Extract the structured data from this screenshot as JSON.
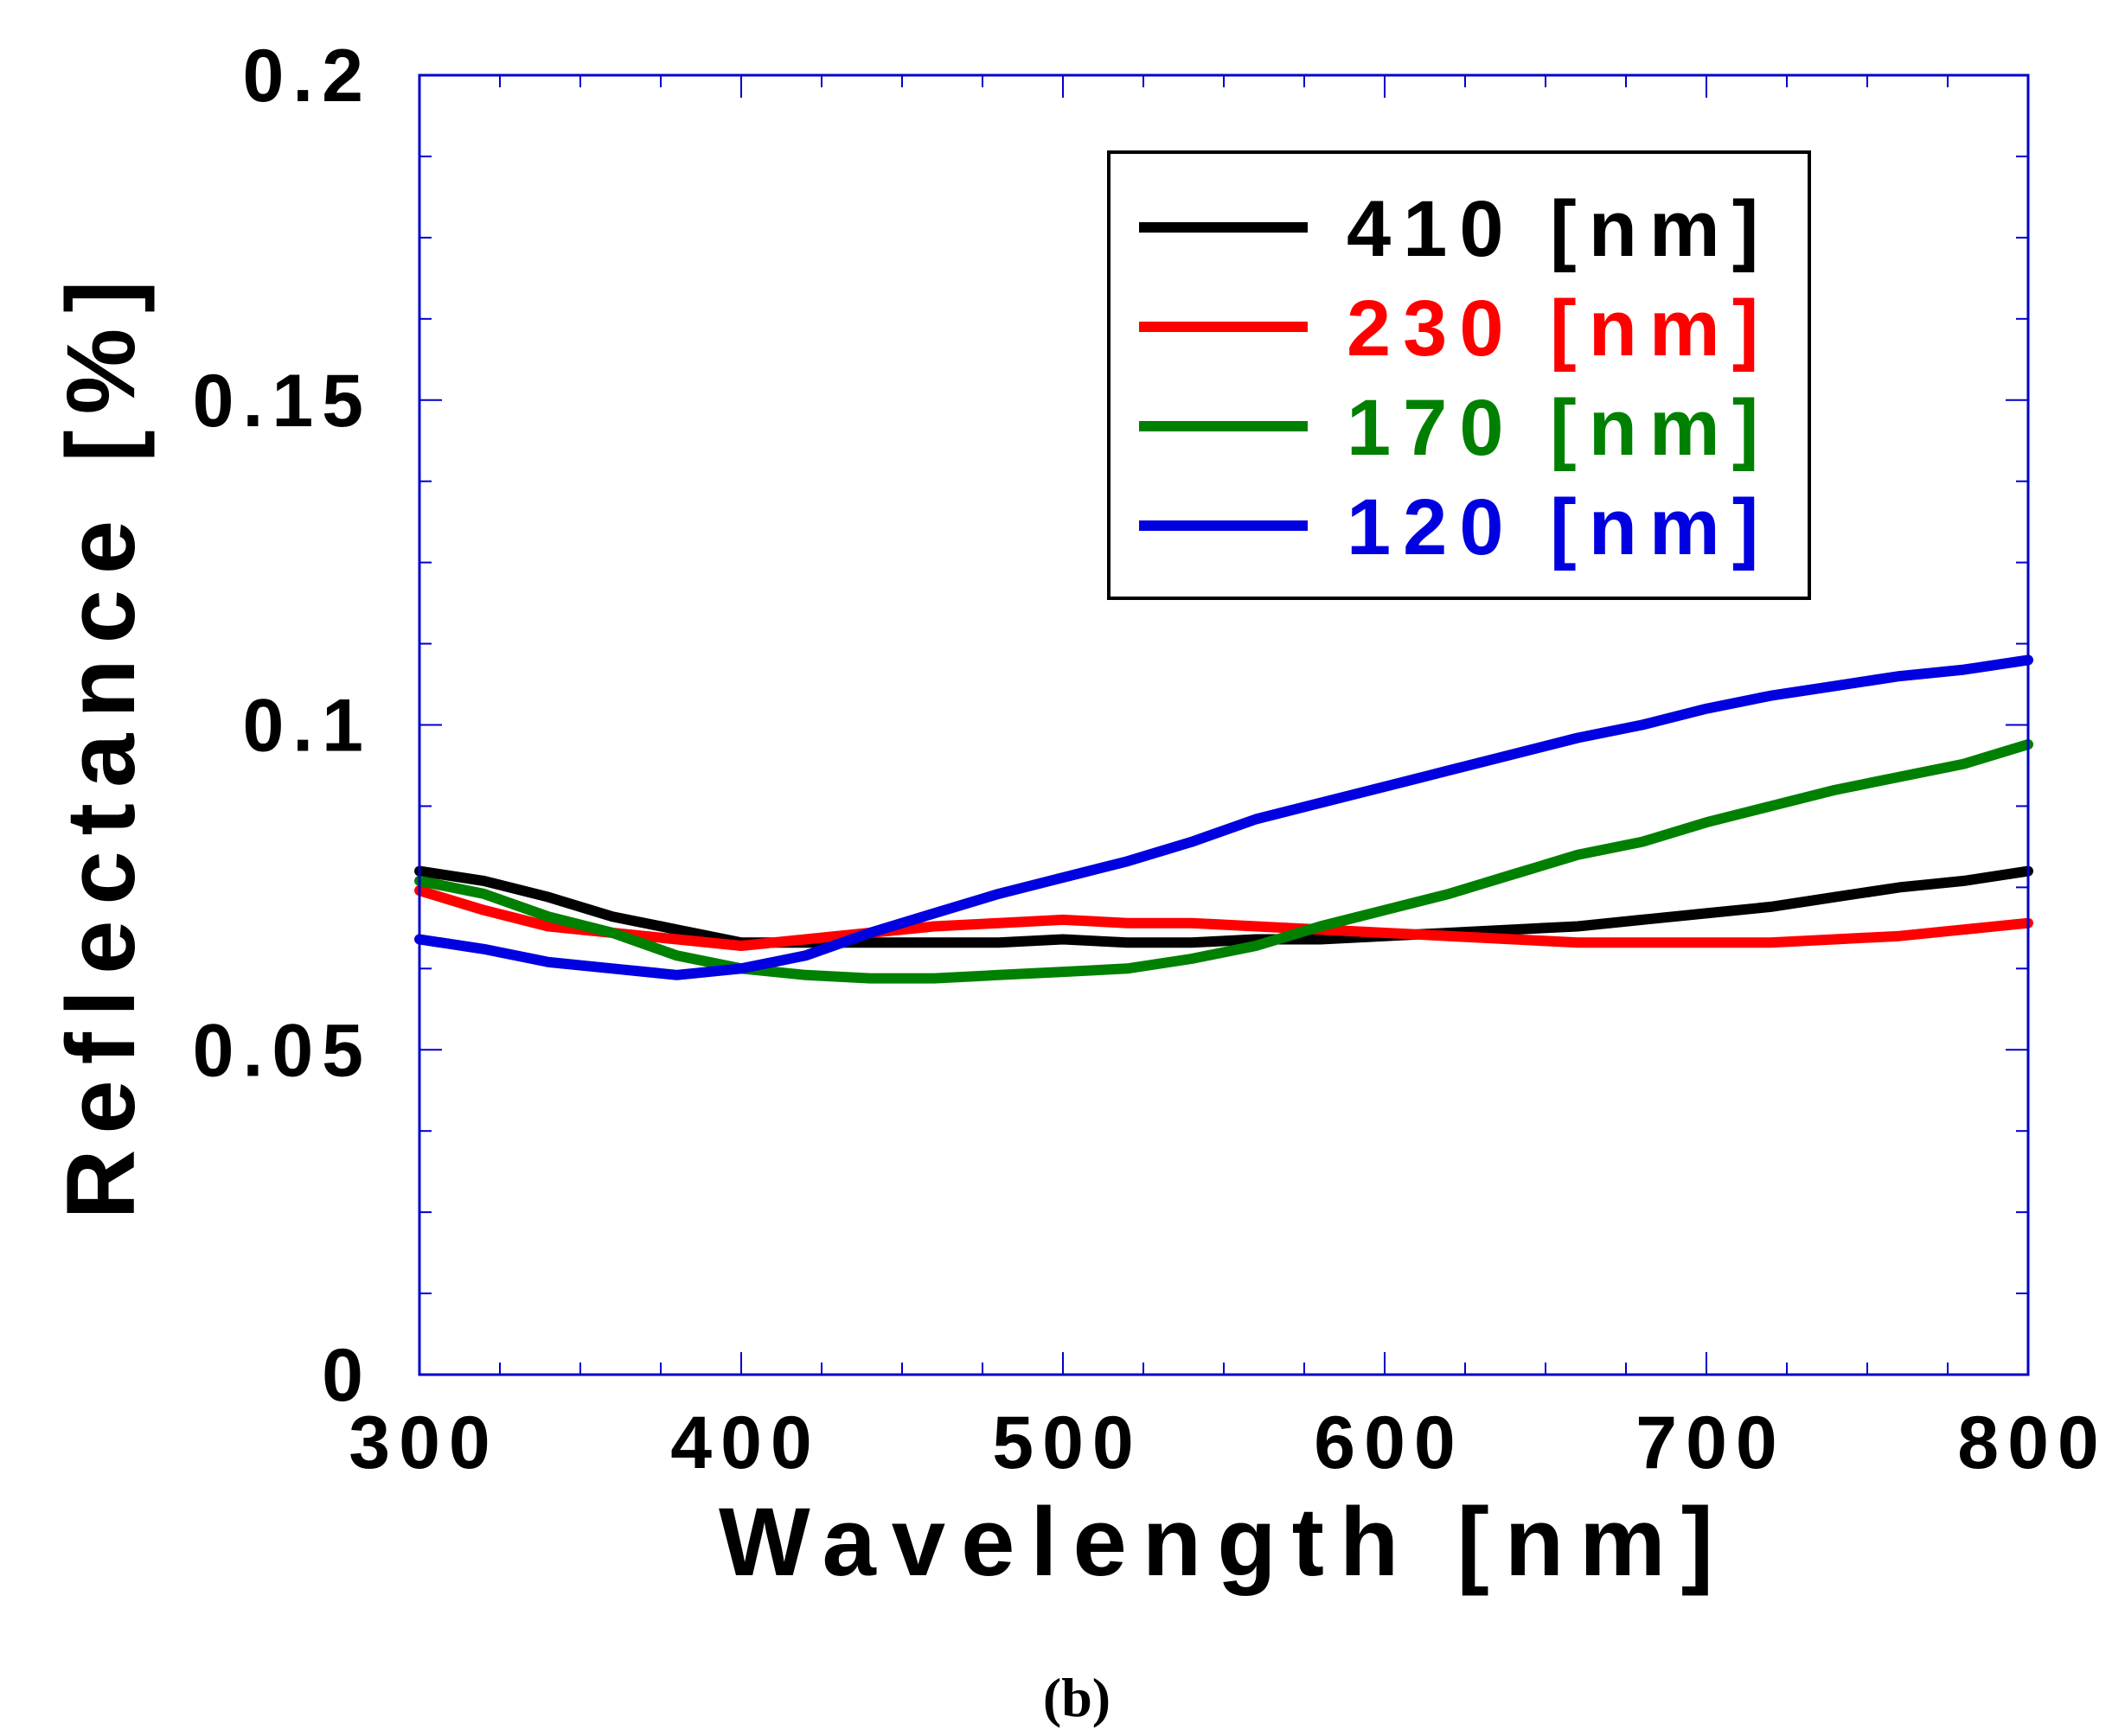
{
  "chart_data": {
    "type": "line",
    "title": "",
    "xlabel": "Wavelength [nm]",
    "ylabel": "Reflectance [%]",
    "xlim": [
      300,
      800
    ],
    "ylim": [
      0,
      0.2
    ],
    "x_ticks": [
      300,
      400,
      500,
      600,
      700,
      800
    ],
    "x_tick_labels": [
      "300",
      "400",
      "500",
      "600",
      "700",
      "800"
    ],
    "y_ticks": [
      0,
      0.05,
      0.1,
      0.15,
      0.2
    ],
    "y_tick_labels": [
      "0",
      "0.05",
      "0.1",
      "0.15",
      "0.2"
    ],
    "legend_position": "top-right",
    "grid": false,
    "caption": "(b)",
    "x": [
      300,
      320,
      340,
      360,
      380,
      400,
      420,
      440,
      460,
      480,
      500,
      520,
      540,
      560,
      580,
      600,
      620,
      640,
      660,
      680,
      700,
      720,
      740,
      760,
      780,
      800
    ],
    "series": [
      {
        "name": "410 [nm]",
        "color": "#000000",
        "values": [
          0.0775,
          0.076,
          0.0735,
          0.0705,
          0.0685,
          0.0665,
          0.0665,
          0.0665,
          0.0665,
          0.0665,
          0.067,
          0.0665,
          0.0665,
          0.067,
          0.067,
          0.0675,
          0.068,
          0.0685,
          0.069,
          0.07,
          0.071,
          0.072,
          0.0735,
          0.075,
          0.076,
          0.0775
        ]
      },
      {
        "name": "230 [nm]",
        "color": "#ff0000",
        "values": [
          0.0745,
          0.0715,
          0.069,
          0.068,
          0.067,
          0.066,
          0.067,
          0.068,
          0.069,
          0.0695,
          0.07,
          0.0695,
          0.0695,
          0.069,
          0.0685,
          0.068,
          0.0675,
          0.067,
          0.0665,
          0.0665,
          0.0665,
          0.0665,
          0.067,
          0.0675,
          0.0685,
          0.0695
        ]
      },
      {
        "name": "170 [nm]",
        "color": "#008000",
        "values": [
          0.076,
          0.074,
          0.0705,
          0.068,
          0.0645,
          0.0625,
          0.0615,
          0.061,
          0.061,
          0.0615,
          0.062,
          0.0625,
          0.064,
          0.066,
          0.069,
          0.0715,
          0.074,
          0.077,
          0.08,
          0.082,
          0.085,
          0.0875,
          0.09,
          0.092,
          0.094,
          0.097
        ]
      },
      {
        "name": "120 [nm]",
        "color": "#0000e0",
        "values": [
          0.067,
          0.0655,
          0.0635,
          0.0625,
          0.0615,
          0.0625,
          0.0645,
          0.068,
          0.071,
          0.074,
          0.0765,
          0.079,
          0.082,
          0.0855,
          0.088,
          0.0905,
          0.093,
          0.0955,
          0.098,
          0.1,
          0.1025,
          0.1045,
          0.106,
          0.1075,
          0.1085,
          0.11
        ]
      }
    ]
  }
}
